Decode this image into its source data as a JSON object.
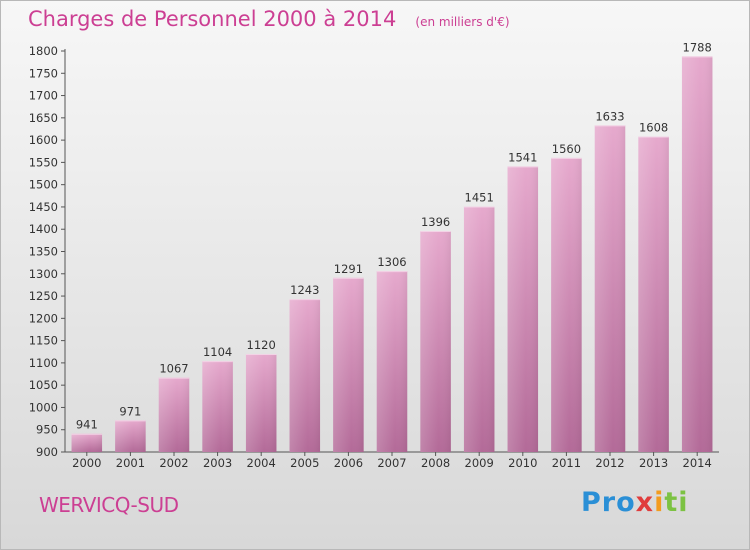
{
  "chart_data": {
    "type": "bar",
    "title": "Charges de Personnel 2000 à 2014",
    "subtitle": "(en milliers d'€)",
    "categories": [
      "2000",
      "2001",
      "2002",
      "2003",
      "2004",
      "2005",
      "2006",
      "2007",
      "2008",
      "2009",
      "2010",
      "2011",
      "2012",
      "2013",
      "2014"
    ],
    "values": [
      941,
      971,
      1067,
      1104,
      1120,
      1243,
      1291,
      1306,
      1396,
      1451,
      1541,
      1560,
      1633,
      1608,
      1788
    ],
    "ylim": [
      900,
      1800
    ],
    "yticks": [
      900,
      950,
      1000,
      1050,
      1100,
      1150,
      1200,
      1250,
      1300,
      1350,
      1400,
      1450,
      1500,
      1550,
      1600,
      1650,
      1700,
      1750,
      1800
    ],
    "grid": false,
    "bar_color": "#d98cba"
  },
  "commune": "WERVICQ-SUD",
  "logo": {
    "p1": "Pro",
    "p2": "x",
    "p3": "i",
    "p4": "ti"
  },
  "colors": {
    "accent": "#cc3f93"
  }
}
